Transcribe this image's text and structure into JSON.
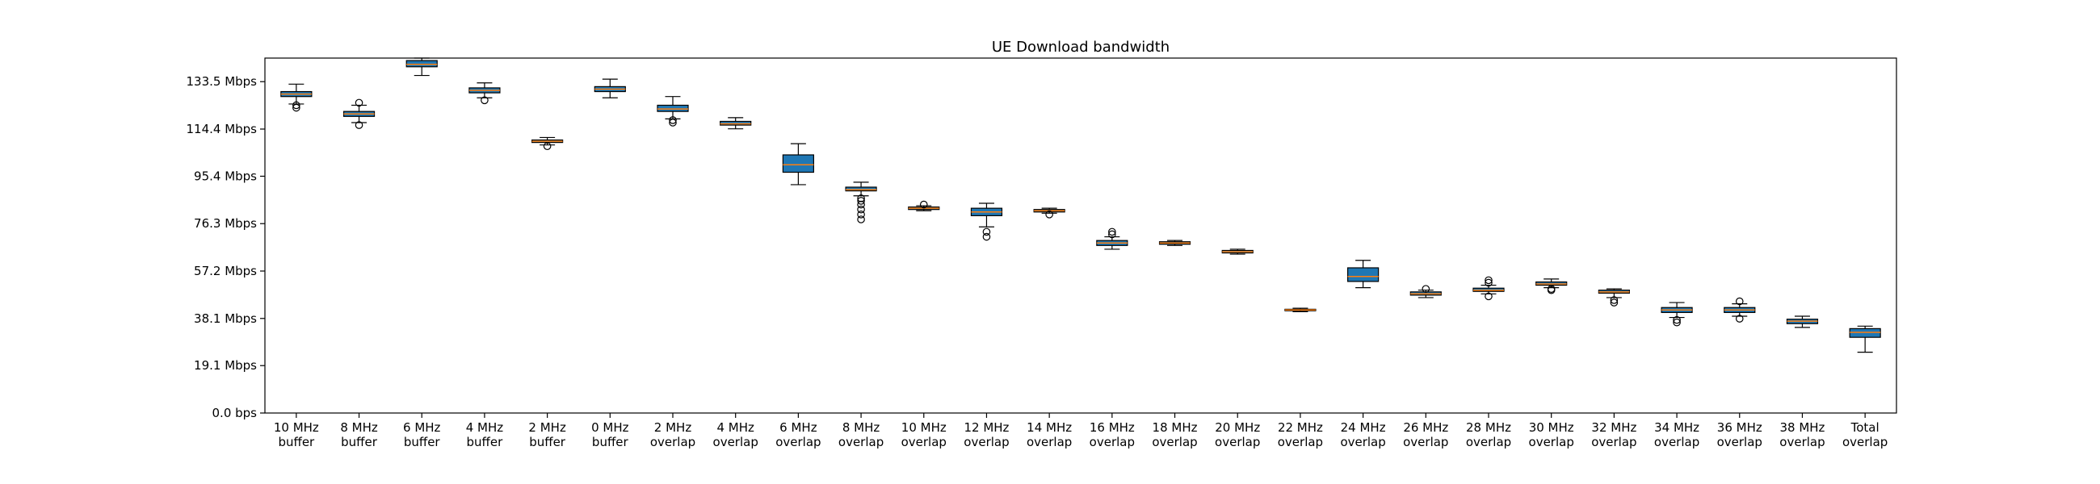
{
  "chart_data": {
    "type": "box",
    "title": "UE Download bandwidth",
    "xlabel": "",
    "ylabel": "",
    "grid": false,
    "legend": "none",
    "ylim": [
      0,
      143
    ],
    "yticks": [
      {
        "value": 0.0,
        "label": "0.0 bps"
      },
      {
        "value": 19.1,
        "label": "19.1 Mbps"
      },
      {
        "value": 38.1,
        "label": "38.1 Mbps"
      },
      {
        "value": 57.2,
        "label": "57.2 Mbps"
      },
      {
        "value": 76.3,
        "label": "76.3 Mbps"
      },
      {
        "value": 95.4,
        "label": "95.4 Mbps"
      },
      {
        "value": 114.4,
        "label": "114.4 Mbps"
      },
      {
        "value": 133.5,
        "label": "133.5 Mbps"
      }
    ],
    "colors": {
      "box_fill": "#1f77b4",
      "box_edge": "#000000",
      "median": "#ff7f0e",
      "axes": "#000000"
    },
    "categories": [
      {
        "line1": "10 MHz",
        "line2": "buffer",
        "whisker_low": 124.5,
        "q1": 127.5,
        "median": 128.5,
        "q3": 129.5,
        "whisker_high": 132.5,
        "outliers": [
          123.0,
          124.0
        ]
      },
      {
        "line1": "8 MHz",
        "line2": "buffer",
        "whisker_low": 117.0,
        "q1": 119.5,
        "median": 120.5,
        "q3": 121.5,
        "whisker_high": 124.0,
        "outliers": [
          116.0,
          125.0
        ]
      },
      {
        "line1": "6 MHz",
        "line2": "buffer",
        "whisker_low": 136.0,
        "q1": 139.5,
        "median": 140.5,
        "q3": 142.0,
        "whisker_high": 143.0,
        "outliers": []
      },
      {
        "line1": "4 MHz",
        "line2": "buffer",
        "whisker_low": 127.0,
        "q1": 129.0,
        "median": 130.0,
        "q3": 131.0,
        "whisker_high": 133.0,
        "outliers": [
          126.0
        ]
      },
      {
        "line1": "2 MHz",
        "line2": "buffer",
        "whisker_low": 108.0,
        "q1": 109.0,
        "median": 109.5,
        "q3": 110.0,
        "whisker_high": 111.0,
        "outliers": [
          107.5
        ]
      },
      {
        "line1": "0 MHz",
        "line2": "buffer",
        "whisker_low": 127.0,
        "q1": 129.5,
        "median": 130.5,
        "q3": 131.5,
        "whisker_high": 134.5,
        "outliers": []
      },
      {
        "line1": "2 MHz",
        "line2": "overlap",
        "whisker_low": 118.5,
        "q1": 121.5,
        "median": 122.5,
        "q3": 124.0,
        "whisker_high": 127.5,
        "outliers": [
          117.0,
          118.0
        ]
      },
      {
        "line1": "4 MHz",
        "line2": "overlap",
        "whisker_low": 114.5,
        "q1": 116.0,
        "median": 116.5,
        "q3": 117.5,
        "whisker_high": 119.0,
        "outliers": []
      },
      {
        "line1": "6 MHz",
        "line2": "overlap",
        "whisker_low": 92.0,
        "q1": 97.0,
        "median": 100.0,
        "q3": 104.0,
        "whisker_high": 108.5,
        "outliers": []
      },
      {
        "line1": "8 MHz",
        "line2": "overlap",
        "whisker_low": 87.5,
        "q1": 89.5,
        "median": 90.0,
        "q3": 91.0,
        "whisker_high": 93.0,
        "outliers": [
          78.0,
          80.0,
          82.0,
          84.0,
          85.5,
          86.5
        ]
      },
      {
        "line1": "10 MHz",
        "line2": "overlap",
        "whisker_low": 81.5,
        "q1": 82.0,
        "median": 82.5,
        "q3": 83.0,
        "whisker_high": 83.5,
        "outliers": [
          84.0
        ]
      },
      {
        "line1": "12 MHz",
        "line2": "overlap",
        "whisker_low": 75.0,
        "q1": 79.5,
        "median": 81.0,
        "q3": 82.5,
        "whisker_high": 84.5,
        "outliers": [
          71.0,
          73.0
        ]
      },
      {
        "line1": "14 MHz",
        "line2": "overlap",
        "whisker_low": 80.5,
        "q1": 81.0,
        "median": 81.5,
        "q3": 82.0,
        "whisker_high": 82.5,
        "outliers": [
          80.0
        ]
      },
      {
        "line1": "16 MHz",
        "line2": "overlap",
        "whisker_low": 66.0,
        "q1": 67.5,
        "median": 68.5,
        "q3": 69.5,
        "whisker_high": 71.0,
        "outliers": [
          72.0,
          73.0
        ]
      },
      {
        "line1": "18 MHz",
        "line2": "overlap",
        "whisker_low": 67.5,
        "q1": 68.0,
        "median": 68.5,
        "q3": 69.0,
        "whisker_high": 69.5,
        "outliers": []
      },
      {
        "line1": "20 MHz",
        "line2": "overlap",
        "whisker_low": 64.0,
        "q1": 64.5,
        "median": 65.0,
        "q3": 65.5,
        "whisker_high": 66.0,
        "outliers": []
      },
      {
        "line1": "22 MHz",
        "line2": "overlap",
        "whisker_low": 40.8,
        "q1": 41.2,
        "median": 41.5,
        "q3": 41.8,
        "whisker_high": 42.2,
        "outliers": []
      },
      {
        "line1": "24 MHz",
        "line2": "overlap",
        "whisker_low": 50.5,
        "q1": 53.0,
        "median": 55.0,
        "q3": 58.5,
        "whisker_high": 61.5,
        "outliers": []
      },
      {
        "line1": "26 MHz",
        "line2": "overlap",
        "whisker_low": 46.5,
        "q1": 47.5,
        "median": 48.0,
        "q3": 48.8,
        "whisker_high": 49.5,
        "outliers": [
          50.0
        ]
      },
      {
        "line1": "28 MHz",
        "line2": "overlap",
        "whisker_low": 48.0,
        "q1": 49.0,
        "median": 49.5,
        "q3": 50.3,
        "whisker_high": 51.5,
        "outliers": [
          47.0,
          52.5,
          53.5
        ]
      },
      {
        "line1": "30 MHz",
        "line2": "overlap",
        "whisker_low": 50.5,
        "q1": 51.5,
        "median": 52.0,
        "q3": 52.8,
        "whisker_high": 54.0,
        "outliers": [
          49.5,
          50.0
        ]
      },
      {
        "line1": "32 MHz",
        "line2": "overlap",
        "whisker_low": 46.5,
        "q1": 48.3,
        "median": 48.8,
        "q3": 49.5,
        "whisker_high": 50.0,
        "outliers": [
          44.5,
          45.5
        ]
      },
      {
        "line1": "34 MHz",
        "line2": "overlap",
        "whisker_low": 38.5,
        "q1": 40.5,
        "median": 41.5,
        "q3": 42.5,
        "whisker_high": 44.5,
        "outliers": [
          36.5,
          37.5
        ]
      },
      {
        "line1": "36 MHz",
        "line2": "overlap",
        "whisker_low": 39.0,
        "q1": 40.5,
        "median": 41.5,
        "q3": 42.5,
        "whisker_high": 44.0,
        "outliers": [
          38.0,
          45.0
        ]
      },
      {
        "line1": "38 MHz",
        "line2": "overlap",
        "whisker_low": 34.5,
        "q1": 36.0,
        "median": 37.0,
        "q3": 37.8,
        "whisker_high": 39.0,
        "outliers": []
      },
      {
        "line1": "Total",
        "line2": "overlap",
        "whisker_low": 24.5,
        "q1": 30.5,
        "median": 32.5,
        "q3": 34.0,
        "whisker_high": 35.0,
        "outliers": []
      }
    ]
  }
}
